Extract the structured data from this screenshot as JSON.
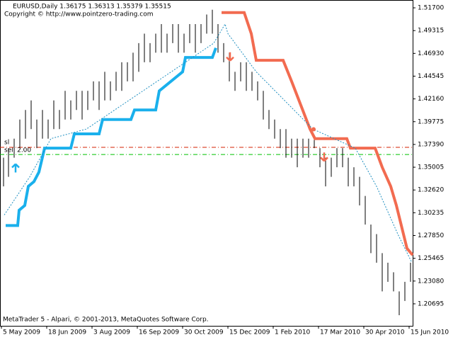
{
  "chart_data": {
    "type": "ohlc",
    "title": "EURUSD,Daily  1.36175 1.36313 1.35379 1.35515",
    "subtitle": "Copyright © http://www.pointzero-trading.com",
    "footer": "MetaTrader 5 - Alpari, © 2001-2013, MetaQuotes Software Corp.",
    "bar_color": "#000000",
    "x": [
      1.5,
      5,
      9,
      13,
      17,
      21,
      25,
      29,
      33,
      37,
      41,
      45,
      49,
      53,
      57,
      61,
      65,
      69,
      73,
      77,
      81,
      85,
      89,
      93,
      97,
      101,
      105,
      109,
      113,
      117,
      121,
      125,
      129,
      133,
      137,
      141,
      145,
      149,
      153,
      157,
      161,
      165,
      169,
      173,
      177,
      181,
      185,
      189,
      193,
      197,
      201,
      205,
      209,
      213,
      217,
      221,
      225,
      229,
      233,
      237,
      241,
      245,
      249,
      253,
      257,
      261,
      265,
      269,
      273,
      277,
      281,
      285,
      289
    ],
    "low": [
      1.33,
      1.34,
      1.36,
      1.37,
      1.38,
      1.39,
      1.37,
      1.38,
      1.38,
      1.39,
      1.39,
      1.4,
      1.4,
      1.41,
      1.4,
      1.41,
      1.42,
      1.41,
      1.42,
      1.42,
      1.43,
      1.43,
      1.44,
      1.44,
      1.45,
      1.46,
      1.46,
      1.47,
      1.47,
      1.47,
      1.48,
      1.47,
      1.47,
      1.48,
      1.47,
      1.48,
      1.49,
      1.49,
      1.47,
      1.46,
      1.44,
      1.43,
      1.44,
      1.43,
      1.43,
      1.42,
      1.4,
      1.39,
      1.38,
      1.37,
      1.36,
      1.36,
      1.35,
      1.36,
      1.36,
      1.37,
      1.35,
      1.33,
      1.34,
      1.35,
      1.35,
      1.33,
      1.33,
      1.31,
      1.29,
      1.26,
      1.25,
      1.22,
      1.23,
      1.22,
      1.195,
      1.21,
      1.23
    ],
    "high": [
      1.36,
      1.37,
      1.38,
      1.4,
      1.41,
      1.42,
      1.4,
      1.41,
      1.4,
      1.42,
      1.41,
      1.43,
      1.42,
      1.43,
      1.43,
      1.43,
      1.44,
      1.44,
      1.45,
      1.44,
      1.45,
      1.46,
      1.46,
      1.47,
      1.48,
      1.49,
      1.48,
      1.49,
      1.5,
      1.49,
      1.5,
      1.5,
      1.49,
      1.5,
      1.5,
      1.5,
      1.51,
      1.515,
      1.5,
      1.48,
      1.47,
      1.45,
      1.46,
      1.46,
      1.45,
      1.44,
      1.43,
      1.41,
      1.4,
      1.39,
      1.39,
      1.38,
      1.38,
      1.38,
      1.38,
      1.38,
      1.37,
      1.36,
      1.36,
      1.37,
      1.37,
      1.36,
      1.35,
      1.34,
      1.32,
      1.29,
      1.28,
      1.26,
      1.25,
      1.24,
      1.22,
      1.23,
      1.25
    ],
    "lines": [
      {
        "color": "#1ab0ec",
        "width": 4,
        "dashed": false,
        "x": [
          3,
          11.5,
          12.5,
          16.5,
          19,
          23,
          26.5,
          30.5,
          49,
          51.5,
          69,
          71.5,
          91.5,
          94,
          109,
          111.5,
          128,
          130,
          149,
          151.5
        ],
        "values": [
          1.289,
          1.289,
          1.305,
          1.31,
          1.33,
          1.335,
          1.345,
          1.37,
          1.37,
          1.385,
          1.385,
          1.4,
          1.4,
          1.41,
          1.41,
          1.43,
          1.45,
          1.465,
          1.465,
          1.475
        ]
      },
      {
        "color": "#f26b50",
        "width": 4,
        "dashed": false,
        "x": [
          155.5,
          171.5,
          176.5,
          180,
          199,
          205,
          211.5,
          218,
          221.5,
          244,
          246.5,
          264,
          269,
          275,
          279,
          284,
          286.5,
          290.5
        ],
        "values": [
          1.512,
          1.512,
          1.49,
          1.462,
          1.462,
          1.44,
          1.415,
          1.39,
          1.38,
          1.38,
          1.37,
          1.37,
          1.35,
          1.33,
          1.31,
          1.28,
          1.265,
          1.258
        ]
      },
      {
        "color": "#1f8fc0",
        "width": 1,
        "dashed": true,
        "x": [
          2,
          20,
          35,
          60,
          90,
          110,
          130,
          150,
          158,
          160,
          180,
          200,
          220,
          250,
          265,
          280,
          290
        ],
        "values": [
          1.3,
          1.34,
          1.38,
          1.39,
          1.42,
          1.44,
          1.46,
          1.48,
          1.5,
          1.49,
          1.45,
          1.42,
          1.39,
          1.37,
          1.33,
          1.28,
          1.25
        ]
      }
    ],
    "hlines": [
      {
        "value": 1.3709,
        "color": "#d62000"
      },
      {
        "value": 1.3634,
        "color": "#00c000"
      }
    ],
    "arrows": [
      {
        "x": 10,
        "value": 1.349,
        "color": "#1ab0ec",
        "direction": "up"
      },
      {
        "x": 161.5,
        "value": 1.466,
        "color": "#f26b50",
        "direction": "down"
      },
      {
        "x": 228,
        "value": 1.361,
        "color": "#f26b50",
        "direction": "down"
      },
      {
        "x": 220.5,
        "value": 1.3898,
        "color": "#f26b50",
        "direction": "dot"
      }
    ],
    "annotations": [
      "sl",
      "sell 2.00"
    ],
    "xlim": [
      -1,
      290.5
    ],
    "ylim": [
      1.1839,
      1.5252
    ],
    "xticks": [
      {
        "value": 0,
        "label": "5 May 2009"
      },
      {
        "value": 32,
        "label": "18 Jun 2009"
      },
      {
        "value": 64,
        "label": "3 Aug 2009"
      },
      {
        "value": 96,
        "label": "16 Sep 2009"
      },
      {
        "value": 128,
        "label": "30 Oct 2009"
      },
      {
        "value": 160,
        "label": "15 Dec 2009"
      },
      {
        "value": 192,
        "label": "1 Feb 2010"
      },
      {
        "value": 224,
        "label": "17 Mar 2010"
      },
      {
        "value": 256,
        "label": "30 Apr 2010"
      },
      {
        "value": 288,
        "label": "15 Jun 2010"
      }
    ],
    "yticks": [
      {
        "value": 1.517,
        "label": "1.51700"
      },
      {
        "value": 1.49315,
        "label": "1.49315"
      },
      {
        "value": 1.4693,
        "label": "1.46930"
      },
      {
        "value": 1.44545,
        "label": "1.44545"
      },
      {
        "value": 1.4216,
        "label": "1.42160"
      },
      {
        "value": 1.39775,
        "label": "1.39775"
      },
      {
        "value": 1.3739,
        "label": "1.37390"
      },
      {
        "value": 1.35005,
        "label": "1.35005"
      },
      {
        "value": 1.3262,
        "label": "1.32620"
      },
      {
        "value": 1.30235,
        "label": "1.30235"
      },
      {
        "value": 1.2785,
        "label": "1.27850"
      },
      {
        "value": 1.25465,
        "label": "1.25465"
      },
      {
        "value": 1.2308,
        "label": "1.23080"
      },
      {
        "value": 1.20695,
        "label": "1.20695"
      }
    ]
  }
}
